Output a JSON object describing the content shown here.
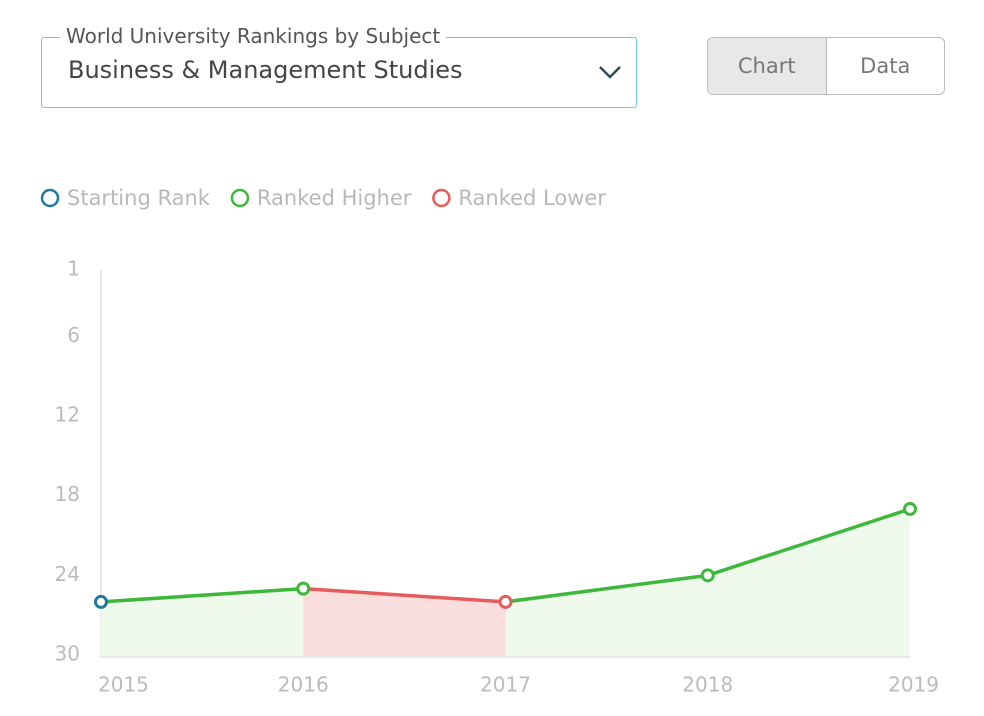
{
  "dropdown": {
    "label": "World University Rankings by Subject",
    "value": "Business & Management Studies"
  },
  "view_toggle": {
    "options": [
      "Chart",
      "Data"
    ],
    "selected_index": 0
  },
  "chart_data": {
    "type": "line",
    "x": [
      "2015",
      "2016",
      "2017",
      "2018",
      "2019"
    ],
    "values": [
      26,
      25,
      26,
      24,
      19
    ],
    "ylim": [
      30,
      1
    ],
    "yticks": [
      1,
      6,
      12,
      18,
      24,
      30
    ],
    "legend": [
      {
        "name": "Starting Rank",
        "color": "#1f7a9b",
        "fill": "#eff9ec"
      },
      {
        "name": "Ranked Higher",
        "color": "#3db83a",
        "fill": "#eff9ec"
      },
      {
        "name": "Ranked Lower",
        "color": "#e65b5b",
        "fill": "#fadddd"
      }
    ]
  }
}
